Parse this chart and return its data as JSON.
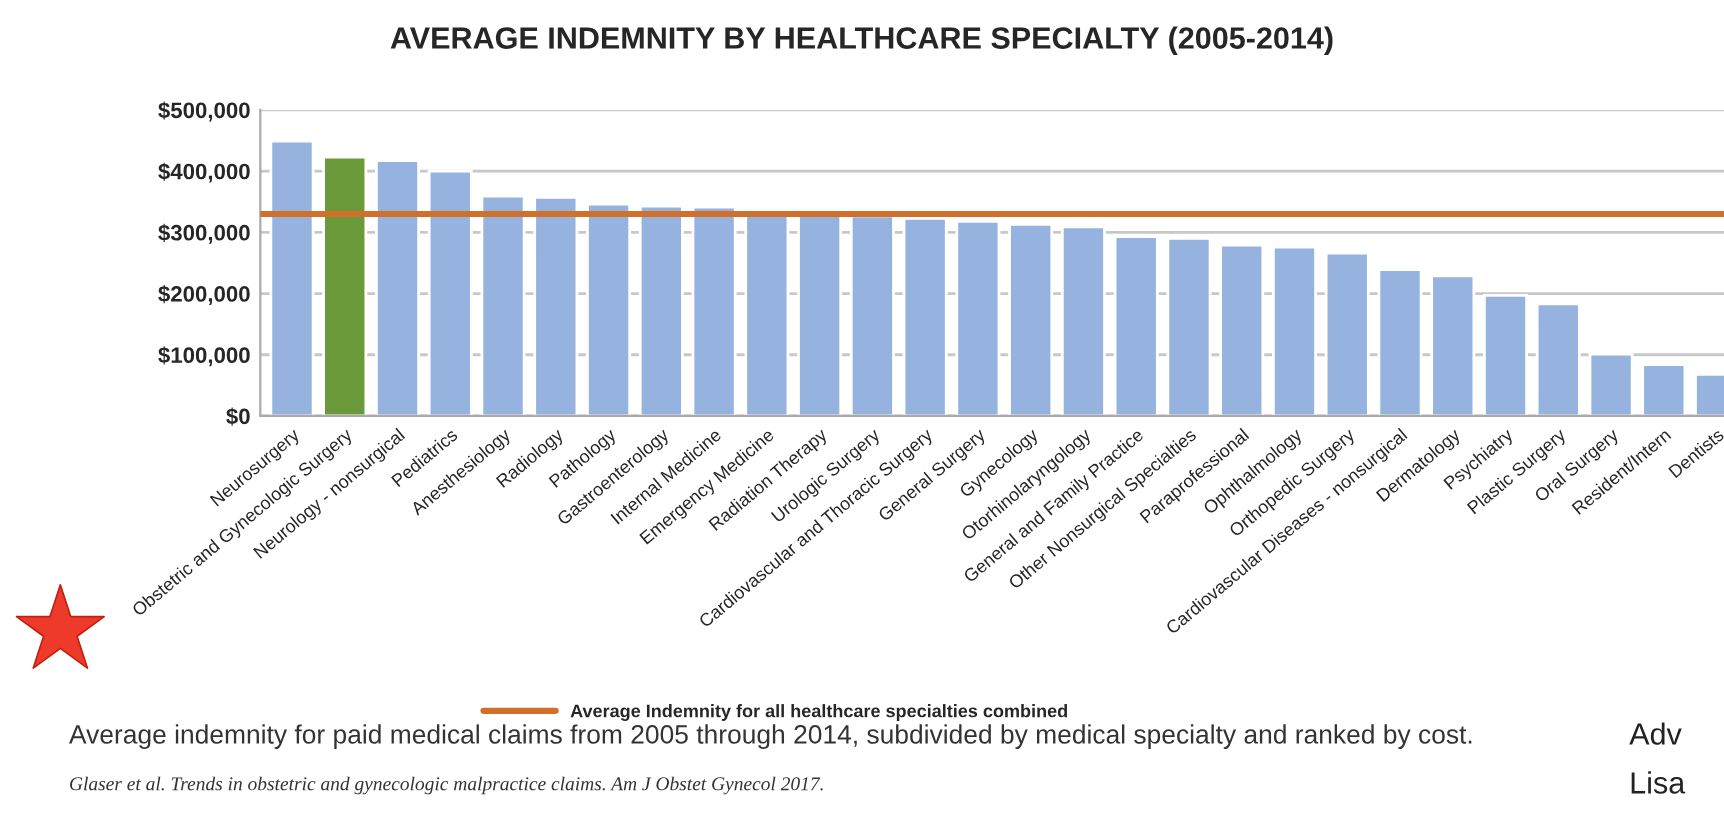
{
  "chart_data": {
    "type": "bar",
    "title": "AVERAGE INDEMNITY BY HEALTHCARE SPECIALTY (2005-2014)",
    "categories": [
      "Neurosurgery",
      "Obstetric and Gynecologic Surgery",
      "Neurology - nonsurgical",
      "Pediatrics",
      "Anesthesiology",
      "Radiology",
      "Pathology",
      "Gastroenterology",
      "Internal Medicine",
      "Emergency Medicine",
      "Radiation Therapy",
      "Urologic Surgery",
      "Cardiovascular and Thoracic Surgery",
      "General Surgery",
      "Gynecology",
      "Otorhinolaryngology",
      "General and Family Practice",
      "Other Nonsurgical Specialties",
      "Paraprofessional",
      "Ophthalmology",
      "Orthopedic Surgery",
      "Cardiovascular Diseases - nonsurgical",
      "Dermatology",
      "Psychiatry",
      "Plastic Surgery",
      "Oral Surgery",
      "Resident/Intern",
      "Dentists"
    ],
    "values": [
      449000,
      423000,
      417000,
      400000,
      359000,
      357000,
      346000,
      343000,
      341000,
      330000,
      329000,
      327000,
      323000,
      318000,
      313000,
      309000,
      293000,
      290000,
      279000,
      276000,
      266000,
      239000,
      229000,
      197000,
      183000,
      101000,
      84000,
      68000
    ],
    "colors": [
      "#95b3de",
      "#6a9a3a",
      "#95b3de",
      "#95b3de",
      "#95b3de",
      "#95b3de",
      "#95b3de",
      "#95b3de",
      "#95b3de",
      "#95b3de",
      "#95b3de",
      "#95b3de",
      "#95b3de",
      "#95b3de",
      "#95b3de",
      "#95b3de",
      "#95b3de",
      "#95b3de",
      "#95b3de",
      "#95b3de",
      "#95b3de",
      "#95b3de",
      "#95b3de",
      "#95b3de",
      "#95b3de",
      "#95b3de",
      "#95b3de",
      "#95b3de"
    ],
    "ylim": [
      0,
      500000
    ],
    "yticks": [
      {
        "value": 0,
        "label": "$0"
      },
      {
        "value": 100000,
        "label": "$100,000"
      },
      {
        "value": 200000,
        "label": "$200,000"
      },
      {
        "value": 300000,
        "label": "$300,000"
      },
      {
        "value": 400000,
        "label": "$400,000"
      },
      {
        "value": 500000,
        "label": "$500,000"
      }
    ],
    "grid": "y",
    "ref_lines": [
      {
        "axis": "y",
        "value": 330000,
        "label": "Average Indemnity for all healthcare specialties combined",
        "color": "#d0702a"
      }
    ],
    "legend": "bottom",
    "annotations": [
      "Average indemnity for paid medical claims from 2005 through 2014, subdivided by medical specialty and ranked by cost.",
      "Glaser et al. Trends in obstetric and gynecologic malpractice claims. Am J Obstet Gynecol 2017.",
      "Adv",
      "Lisa"
    ]
  }
}
